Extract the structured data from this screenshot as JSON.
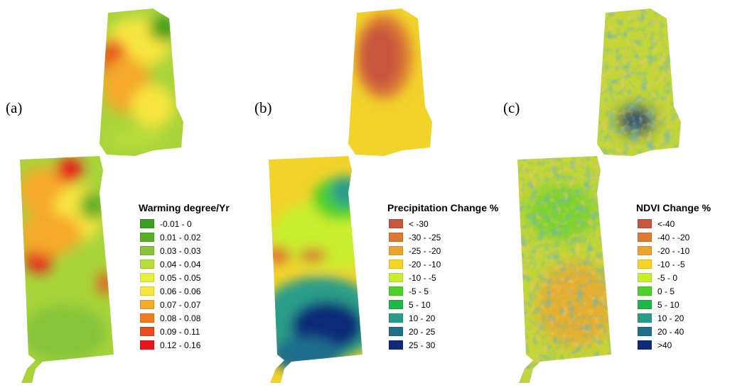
{
  "panels": [
    {
      "id": "a",
      "letter": "(a)",
      "legend_title": "Warming degree/Yr",
      "base_color": "#a8d43a",
      "legend": [
        {
          "label": "-0.01 - 0",
          "color": "#3c9e1f"
        },
        {
          "label": "0.01 - 0.02",
          "color": "#5aad26"
        },
        {
          "label": "0.03 - 0.03",
          "color": "#86c43a"
        },
        {
          "label": "0.04 - 0.04",
          "color": "#b8dc3a"
        },
        {
          "label": "0.05 - 0.05",
          "color": "#e8f03c"
        },
        {
          "label": "0.06 - 0.06",
          "color": "#f8e640"
        },
        {
          "label": "0.07 - 0.07",
          "color": "#f5a92a"
        },
        {
          "label": "0.08 - 0.08",
          "color": "#f07c1f"
        },
        {
          "label": "0.09 - 0.11",
          "color": "#ea4a1c"
        },
        {
          "label": "0.12 - 0.16",
          "color": "#e8161c"
        }
      ]
    },
    {
      "id": "b",
      "letter": "(b)",
      "legend_title": "Precipitation Change %",
      "base_color": "#f2d32a",
      "legend": [
        {
          "label": "< -30",
          "color": "#c8553d"
        },
        {
          "label": "-30 - -25",
          "color": "#db7a34"
        },
        {
          "label": "-25 - -20",
          "color": "#eca52c"
        },
        {
          "label": "-20 - -10",
          "color": "#f5d527"
        },
        {
          "label": "-10 - -5",
          "color": "#c9ee2e"
        },
        {
          "label": "-5 - 5",
          "color": "#4fd02a"
        },
        {
          "label": "5 - 10",
          "color": "#1fb74a"
        },
        {
          "label": "10 - 20",
          "color": "#2a9d88"
        },
        {
          "label": "20 - 25",
          "color": "#1f6e8c"
        },
        {
          "label": "25 - 30",
          "color": "#0e2a78"
        }
      ]
    },
    {
      "id": "c",
      "letter": "(c)",
      "legend_title": "NDVI Change %",
      "base_color": "#c2d636",
      "legend": [
        {
          "label": "<-40",
          "color": "#c8553d"
        },
        {
          "label": "-40 - -20",
          "color": "#dc7a36"
        },
        {
          "label": "-20 - -10",
          "color": "#eca52c"
        },
        {
          "label": "-10 - -5",
          "color": "#f5d527"
        },
        {
          "label": "-5 - 0",
          "color": "#c9ee2e"
        },
        {
          "label": "0 - 5",
          "color": "#4fd02a"
        },
        {
          "label": "5 - 10",
          "color": "#1fb74a"
        },
        {
          "label": "10 - 20",
          "color": "#2a9d88"
        },
        {
          "label": "20 - 40",
          "color": "#1f6e8c"
        },
        {
          "label": ">40",
          "color": "#0e2a78"
        }
      ]
    }
  ]
}
